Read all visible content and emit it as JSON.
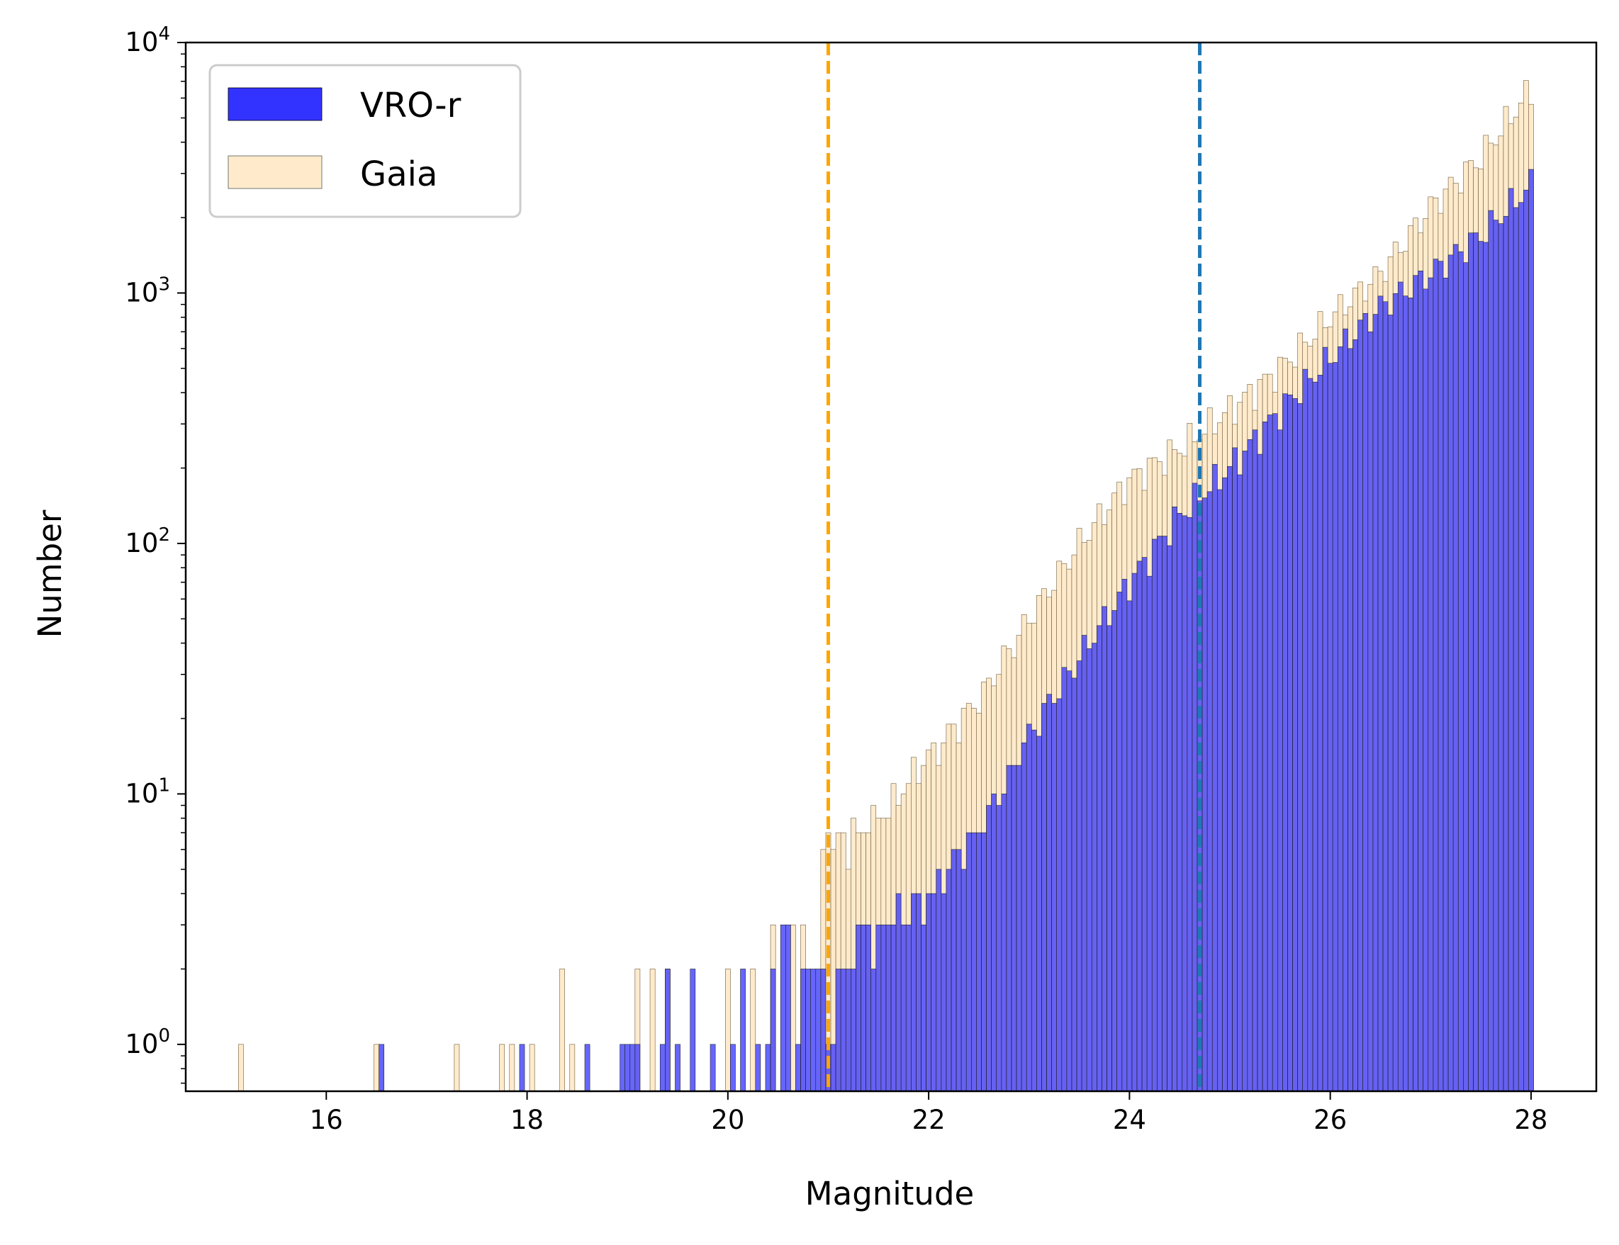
{
  "chart_data": {
    "type": "bar",
    "xlabel": "Magnitude",
    "ylabel": "Number",
    "xlim": [
      14.6,
      28.65
    ],
    "ylim": [
      0.65,
      10000
    ],
    "yscale": "log",
    "bin_width": 0.05,
    "x_ticks": [
      "16",
      "18",
      "20",
      "22",
      "24",
      "26",
      "28"
    ],
    "y_ticks": [
      {
        "base": "10",
        "exp": "0",
        "value": 1
      },
      {
        "base": "10",
        "exp": "1",
        "value": 10
      },
      {
        "base": "10",
        "exp": "2",
        "value": 100
      },
      {
        "base": "10",
        "exp": "3",
        "value": 1000
      },
      {
        "base": "10",
        "exp": "4",
        "value": 10000
      }
    ],
    "legend": {
      "placement": "top-left"
    },
    "vlines": [
      {
        "x": 21.0,
        "color": "#ffa500",
        "style": "dashed"
      },
      {
        "x": 24.7,
        "color": "#1f77b4",
        "style": "dashed"
      }
    ],
    "series": [
      {
        "name": "VRO-r",
        "color": "#3333ff",
        "low": [
          [
            16.55,
            1
          ],
          [
            17.95,
            1
          ],
          [
            18.6,
            1
          ],
          [
            18.95,
            1
          ],
          [
            19.0,
            1
          ],
          [
            19.05,
            1
          ],
          [
            19.1,
            1
          ],
          [
            19.35,
            1
          ],
          [
            19.4,
            2
          ],
          [
            19.5,
            1
          ],
          [
            19.65,
            2
          ],
          [
            19.85,
            1
          ],
          [
            20.05,
            1
          ],
          [
            20.15,
            2
          ],
          [
            20.3,
            1
          ],
          [
            20.4,
            1
          ],
          [
            20.45,
            2
          ],
          [
            20.55,
            3
          ],
          [
            20.6,
            3
          ],
          [
            20.7,
            1
          ],
          [
            20.75,
            2
          ],
          [
            20.8,
            2
          ],
          [
            20.85,
            2
          ],
          [
            20.9,
            2
          ],
          [
            20.95,
            2
          ],
          [
            21.0,
            1
          ],
          [
            21.05,
            1
          ]
        ],
        "curve_start": 21.1,
        "curve_end": 28.0,
        "curve_x": [
          21.1,
          21.5,
          22.0,
          22.5,
          23.0,
          23.5,
          24.0,
          24.5,
          25.0,
          25.5,
          26.0,
          26.5,
          27.0,
          27.5,
          28.0
        ],
        "curve_y": [
          2.0,
          3.0,
          4.0,
          7.0,
          17,
          35,
          70,
          130,
          200,
          340,
          550,
          880,
          1200,
          1700,
          2700
        ]
      },
      {
        "name": "Gaia",
        "color": "#ffebcc",
        "low": [
          [
            15.15,
            1
          ],
          [
            16.5,
            1
          ],
          [
            17.3,
            1
          ],
          [
            17.75,
            1
          ],
          [
            17.85,
            1
          ],
          [
            18.05,
            1
          ],
          [
            18.35,
            2
          ],
          [
            18.45,
            1
          ],
          [
            19.1,
            2
          ],
          [
            19.25,
            2
          ],
          [
            19.4,
            2
          ],
          [
            20.0,
            2
          ],
          [
            20.25,
            2
          ],
          [
            20.45,
            3
          ],
          [
            20.65,
            3
          ],
          [
            20.75,
            3
          ],
          [
            20.95,
            6
          ],
          [
            21.0,
            7
          ]
        ],
        "curve_start": 21.05,
        "curve_end": 28.0,
        "curve_x": [
          21.05,
          21.5,
          22.0,
          22.5,
          23.0,
          23.5,
          24.0,
          24.5,
          25.0,
          25.5,
          26.0,
          26.5,
          27.0,
          27.5,
          28.0
        ],
        "curve_y": [
          6,
          8,
          14,
          24,
          50,
          100,
          180,
          240,
          340,
          500,
          800,
          1200,
          2200,
          3500,
          6500
        ]
      }
    ]
  }
}
